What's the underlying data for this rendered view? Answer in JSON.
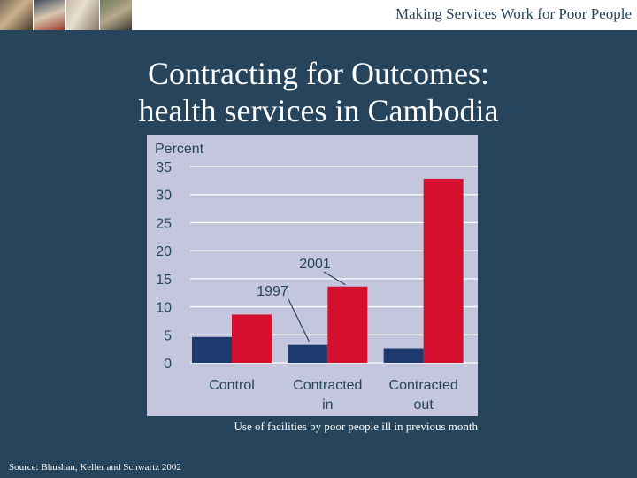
{
  "header": {
    "text": "Making Services Work for Poor People",
    "photos": [
      "photo-1",
      "photo-2",
      "photo-3",
      "photo-4"
    ]
  },
  "title": {
    "line1": "Contracting for Outcomes:",
    "line2": "health services in Cambodia"
  },
  "chart_data": {
    "type": "bar",
    "ylabel": "Percent",
    "ylim": [
      0,
      35
    ],
    "yticks": [
      0,
      5,
      10,
      15,
      20,
      25,
      30,
      35
    ],
    "grid": true,
    "categories": [
      [
        "Control"
      ],
      [
        "Contracted",
        "in"
      ],
      [
        "Contracted",
        "out"
      ]
    ],
    "series": [
      {
        "name": "1997",
        "color": "#1c3a6e",
        "values": [
          4.6,
          3.2,
          2.6
        ]
      },
      {
        "name": "2001",
        "color": "#d5102e",
        "values": [
          8.6,
          13.6,
          32.8
        ]
      }
    ],
    "annotations": [
      "2001",
      "1997"
    ]
  },
  "caption": "Use of facilities by poor people ill in previous month",
  "source": "Source: Bhushan, Keller and Schwartz 2002"
}
